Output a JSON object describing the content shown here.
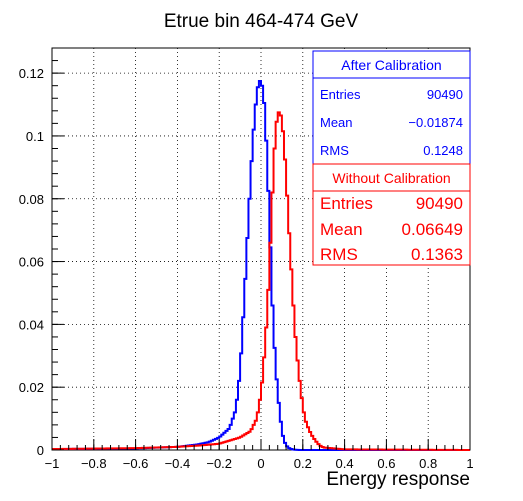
{
  "chart_data": {
    "type": "step-histogram",
    "title": "Etrue bin 464-474 GeV",
    "xlabel": "Energy response",
    "ylabel": "",
    "xlim": [
      -1,
      1
    ],
    "ylim": [
      0,
      0.128
    ],
    "grid": true,
    "x_ticks": [
      -1,
      -0.8,
      -0.6,
      -0.4,
      -0.2,
      0,
      0.2,
      0.4,
      0.6,
      0.8,
      1
    ],
    "x_tick_labels": [
      "−1",
      "−0.8",
      "−0.6",
      "−0.4",
      "−0.2",
      "0",
      "0.2",
      "0.4",
      "0.6",
      "0.8",
      "1"
    ],
    "y_ticks": [
      0,
      0.02,
      0.04,
      0.06,
      0.08,
      0.1,
      0.12
    ],
    "y_tick_labels": [
      "0",
      "0.02",
      "0.04",
      "0.06",
      "0.08",
      "0.1",
      "0.12"
    ],
    "bin_edges": {
      "start": -1,
      "width": 0.01,
      "count": 200
    },
    "series": [
      {
        "color": "#0000ff",
        "x": [
          -1.0,
          -0.6,
          -0.4,
          -0.3,
          -0.25,
          -0.2,
          -0.15,
          -0.12,
          -0.1,
          -0.08,
          -0.06,
          -0.04,
          -0.02,
          -0.01,
          0.0,
          0.01,
          0.02,
          0.03,
          0.04,
          0.05,
          0.06,
          0.07,
          0.08,
          0.09,
          0.1,
          0.11,
          0.12,
          0.13,
          0.14,
          0.15,
          0.16,
          0.18,
          0.2,
          0.3,
          0.5,
          1.0
        ],
        "y": [
          0.0003,
          0.0005,
          0.001,
          0.0018,
          0.0025,
          0.004,
          0.007,
          0.013,
          0.025,
          0.048,
          0.074,
          0.098,
          0.114,
          0.117,
          0.118,
          0.114,
          0.107,
          0.09,
          0.075,
          0.054,
          0.038,
          0.027,
          0.018,
          0.012,
          0.006,
          0.003,
          0.0015,
          0.0008,
          0.0004,
          0.0002,
          0.0001,
          0.0,
          0.0,
          0.0,
          0.0,
          0.0
        ]
      },
      {
        "color": "#ff0000",
        "x": [
          -1.0,
          -0.6,
          -0.4,
          -0.3,
          -0.2,
          -0.15,
          -0.1,
          -0.05,
          -0.02,
          0.0,
          0.01,
          0.02,
          0.03,
          0.04,
          0.05,
          0.06,
          0.07,
          0.08,
          0.09,
          0.1,
          0.11,
          0.12,
          0.13,
          0.14,
          0.15,
          0.16,
          0.17,
          0.18,
          0.19,
          0.2,
          0.21,
          0.22,
          0.24,
          0.26,
          0.28,
          0.3,
          0.4,
          1.0
        ],
        "y": [
          0.0003,
          0.0006,
          0.001,
          0.0014,
          0.002,
          0.003,
          0.004,
          0.006,
          0.01,
          0.018,
          0.025,
          0.034,
          0.044,
          0.058,
          0.074,
          0.09,
          0.102,
          0.107,
          0.108,
          0.105,
          0.098,
          0.087,
          0.075,
          0.063,
          0.052,
          0.04,
          0.032,
          0.025,
          0.019,
          0.014,
          0.01,
          0.008,
          0.005,
          0.003,
          0.0015,
          0.0008,
          0.0002,
          0.0
        ]
      }
    ]
  },
  "stats_after": {
    "title": "After Calibration",
    "color": "#0000ff",
    "rows": [
      {
        "label": "Entries",
        "value": "90490"
      },
      {
        "label": "Mean",
        "value": "−0.01874"
      },
      {
        "label": "RMS",
        "value": "0.1248"
      }
    ]
  },
  "stats_without": {
    "title": "Without Calibration",
    "color": "#ff0000",
    "rows": [
      {
        "label": "Entries",
        "value": "90490"
      },
      {
        "label": "Mean",
        "value": "0.06649"
      },
      {
        "label": "RMS",
        "value": "0.1363"
      }
    ]
  }
}
